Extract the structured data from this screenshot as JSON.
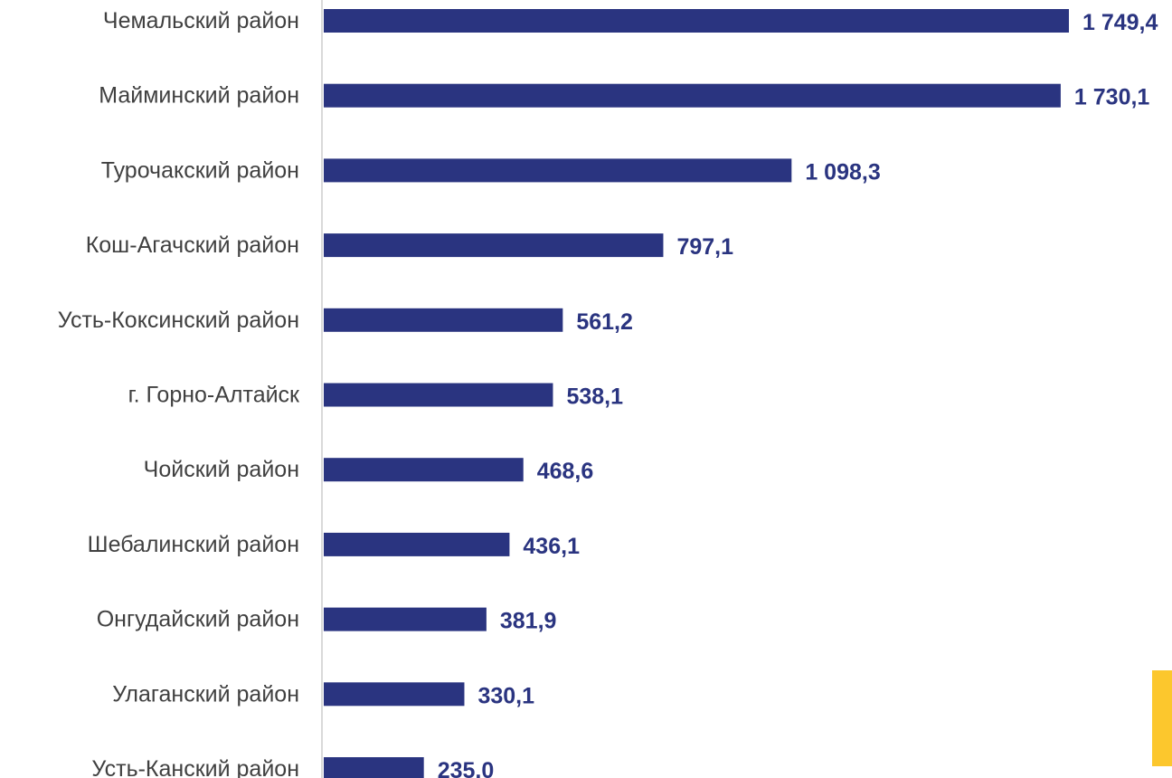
{
  "chart_data": {
    "type": "bar",
    "orientation": "horizontal",
    "categories": [
      "Чемальский район",
      "Майминский район",
      "Турочакский район",
      "Кош-Агачский район",
      "Усть-Коксинский район",
      "г. Горно-Алтайск",
      "Чойский район",
      "Шебалинский район",
      "Онгудайский район",
      "Улаганский район",
      "Усть-Канский район"
    ],
    "values": [
      1749.4,
      1730.1,
      1098.3,
      797.1,
      561.2,
      538.1,
      468.6,
      436.1,
      381.9,
      330.1,
      235.0
    ],
    "value_labels": [
      "1 749,4",
      "1 730,1",
      "1 098,3",
      "797,1",
      "561,2",
      "538,1",
      "468,6",
      "436,1",
      "381,9",
      "330,1",
      "235,0"
    ],
    "xlim": [
      0,
      1749.4
    ],
    "grid": false,
    "legend": "none"
  },
  "colors": {
    "bar": "#2a3480",
    "value_label": "#2a3480",
    "category_label": "#404040",
    "axis_line": "#d9d9d9",
    "accent": "#fcc72d"
  }
}
